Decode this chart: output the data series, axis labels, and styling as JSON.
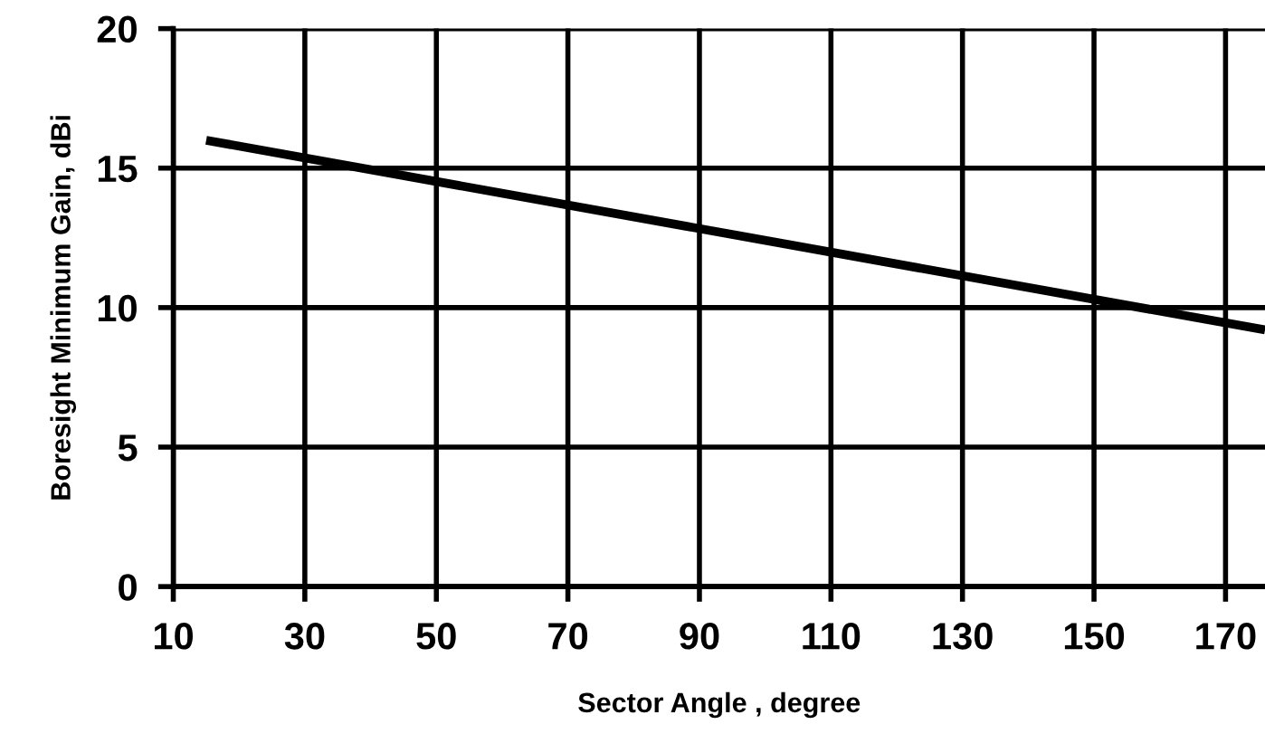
{
  "chart_data": {
    "type": "line",
    "xlabel": "Sector Angle , degree",
    "ylabel": "Boresight Minimum Gain, dBi",
    "x": [
      15,
      176
    ],
    "series": [
      {
        "color": "#000000",
        "values": [
          16.0,
          9.2
        ]
      }
    ],
    "xlim": [
      10,
      176
    ],
    "xticks": [
      10,
      30,
      50,
      70,
      90,
      110,
      130,
      150,
      170
    ],
    "ylim": [
      0,
      20
    ],
    "yticks": [
      0,
      5,
      10,
      15,
      20
    ],
    "grid": true,
    "marker": "none",
    "line_style": "solid"
  }
}
